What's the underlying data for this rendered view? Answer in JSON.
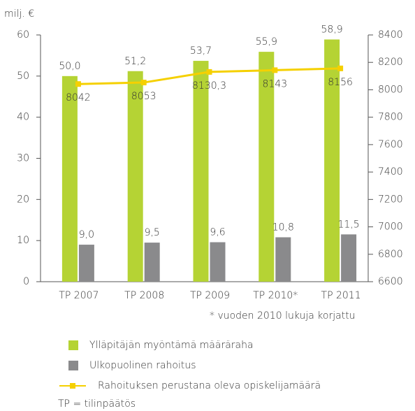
{
  "chart_data": {
    "type": "bar",
    "ylabel": "milj. €",
    "categories": [
      "TP 2007",
      "TP 2008",
      "TP 2009",
      "TP 2010*",
      "TP 2011"
    ],
    "series": [
      {
        "name": "Ylläpitäjän myöntämä määräraha",
        "color": "#b5d334",
        "type": "bar",
        "axis": "y",
        "values": [
          50.0,
          51.2,
          53.7,
          55.9,
          58.9
        ],
        "value_labels": [
          "50,0",
          "51,2",
          "53,7",
          "55,9",
          "58,9"
        ]
      },
      {
        "name": "Ulkopuolinen rahoitus",
        "color": "#8a8a8c",
        "type": "bar",
        "axis": "y",
        "values": [
          9.0,
          9.5,
          9.6,
          10.8,
          11.5
        ],
        "value_labels": [
          "9,0",
          "9,5",
          "9,6",
          "10,8",
          "11,5"
        ]
      },
      {
        "name": "Rahoituksen perustana oleva opiskelijamäärä",
        "color": "#f5d000",
        "type": "line",
        "axis": "y2",
        "values": [
          8042,
          8053,
          8130.3,
          8143,
          8156
        ],
        "value_labels": [
          "8042",
          "8053",
          "8130,3",
          "8143",
          "8156"
        ]
      }
    ],
    "ylim": [
      0,
      60
    ],
    "yticks": [
      0,
      10,
      20,
      30,
      40,
      50,
      60
    ],
    "y2lim": [
      6600,
      8400
    ],
    "y2ticks": [
      6600,
      6800,
      7000,
      7200,
      7400,
      7600,
      7800,
      8000,
      8200,
      8400
    ],
    "footnote": "* vuoden 2010 lukuja korjattu",
    "legend_note": "TP = tilinpäätös"
  }
}
